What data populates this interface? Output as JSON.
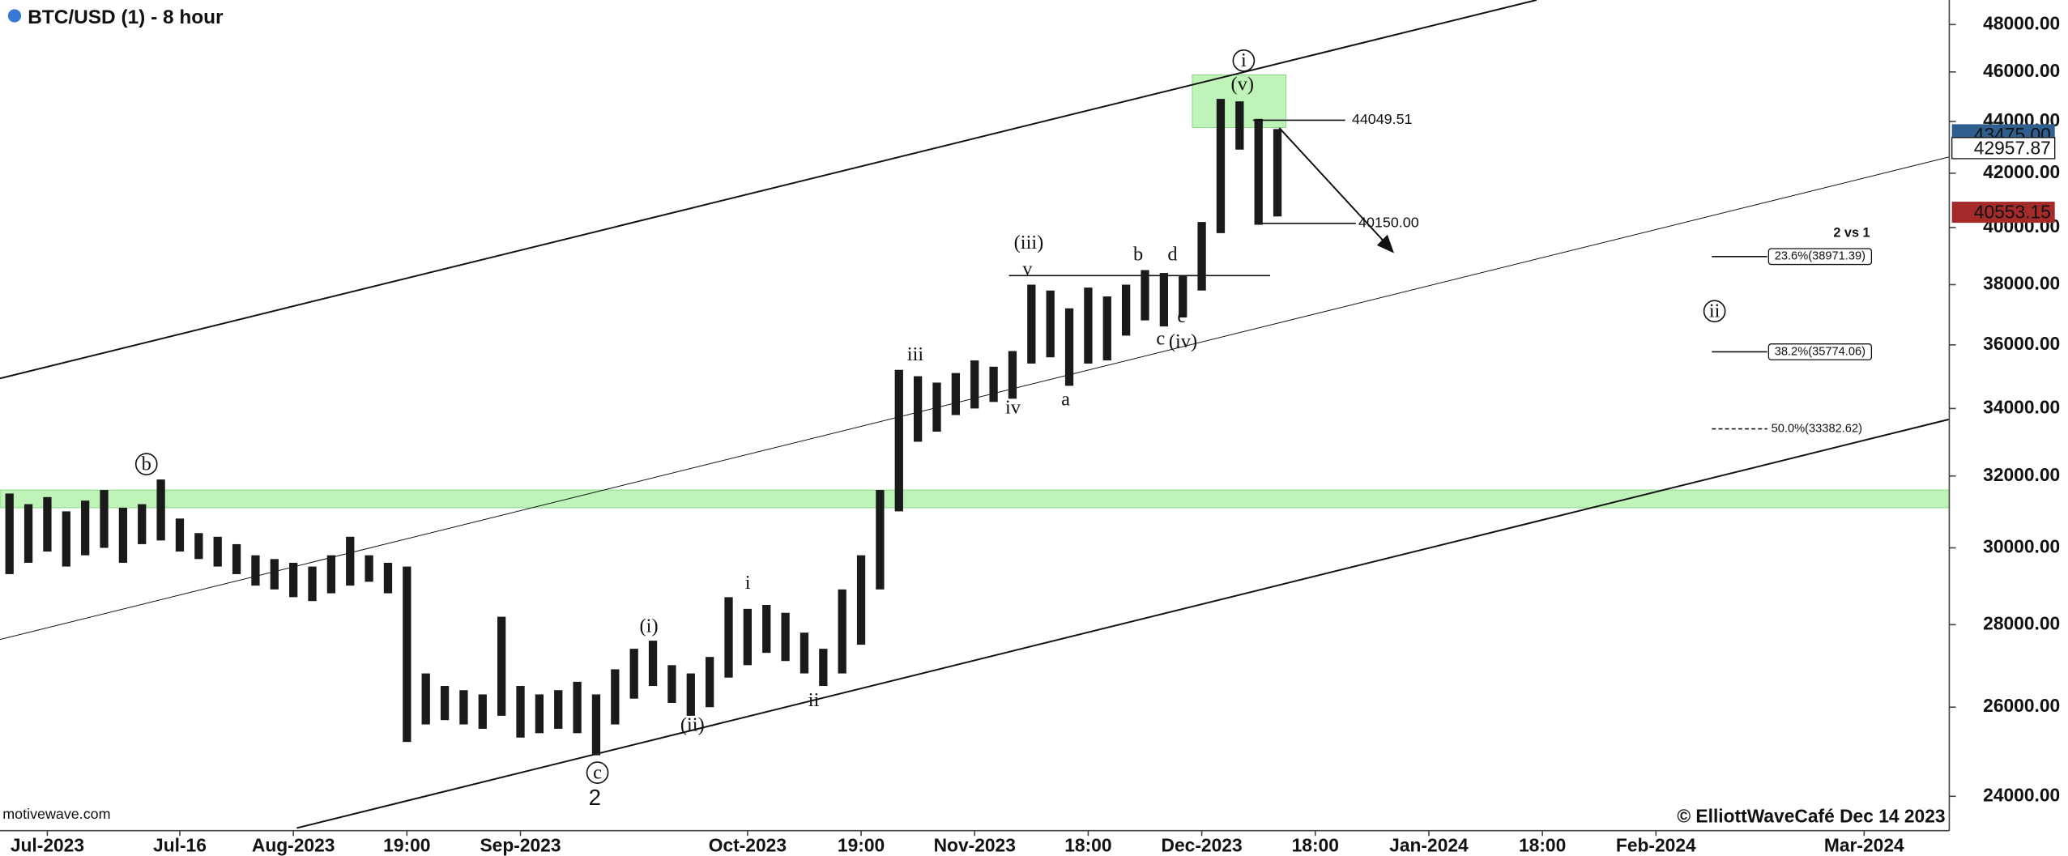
{
  "chart_data": {
    "type": "ohlc",
    "title": "BTC/USD (1) - 8 hour",
    "log": true,
    "grid": false,
    "color": "#1a1a1a",
    "ylim": [
      23270,
      49070
    ],
    "yticks": [
      {
        "value": 24000,
        "label": "24000.00"
      },
      {
        "value": 26000,
        "label": "26000.00"
      },
      {
        "value": 28000,
        "label": "28000.00"
      },
      {
        "value": 30000,
        "label": "30000.00"
      },
      {
        "value": 32000,
        "label": "32000.00"
      },
      {
        "value": 34000,
        "label": "34000.00"
      },
      {
        "value": 36000,
        "label": "36000.00"
      },
      {
        "value": 38000,
        "label": "38000.00"
      },
      {
        "value": 40000,
        "label": "40000.00"
      },
      {
        "value": 42000,
        "label": "42000.00"
      },
      {
        "value": 44000,
        "label": "44000.00"
      },
      {
        "value": 46000,
        "label": "46000.00"
      },
      {
        "value": 48000,
        "label": "48000.00"
      }
    ],
    "categories": [
      null,
      null,
      "Jul-2023",
      null,
      null,
      null,
      null,
      null,
      null,
      "Jul-16",
      null,
      null,
      null,
      null,
      null,
      "Aug-2023",
      null,
      null,
      null,
      null,
      null,
      "19:00",
      null,
      null,
      null,
      null,
      null,
      "Sep-2023",
      null,
      null,
      null,
      null,
      null,
      null,
      null,
      null,
      null,
      null,
      null,
      "Oct-2023",
      null,
      null,
      null,
      null,
      null,
      "19:00",
      null,
      null,
      null,
      null,
      null,
      "Nov-2023",
      null,
      null,
      null,
      null,
      null,
      "18:00",
      null,
      null,
      null,
      null,
      null,
      "Dec-2023",
      null,
      null,
      null,
      null,
      null,
      "18:00",
      null,
      null,
      null,
      null,
      null,
      "Jan-2024",
      null,
      null,
      null,
      null,
      null,
      "18:00",
      null,
      null,
      null,
      null,
      null,
      "Feb-2024",
      null,
      null,
      null,
      null,
      null,
      null,
      null,
      null,
      null,
      null,
      "Mar-2024",
      null,
      null,
      null,
      null
    ],
    "series": [
      {
        "name": "High",
        "values": [
          31500,
          31200,
          31400,
          31000,
          31300,
          31600,
          31100,
          31200,
          31900,
          30800,
          30400,
          30300,
          30100,
          29800,
          29700,
          29600,
          29500,
          29800,
          30300,
          29800,
          29600,
          29500,
          26800,
          26500,
          26400,
          26300,
          28200,
          26500,
          26300,
          26400,
          26600,
          26300,
          26900,
          27400,
          27600,
          27000,
          26800,
          27200,
          28700,
          28400,
          28500,
          28300,
          27800,
          27400,
          28900,
          29800,
          31600,
          35200,
          35000,
          34800,
          35100,
          35500,
          35300,
          35800,
          38000,
          37800,
          37200,
          37900,
          37600,
          38000,
          38500,
          38400,
          38300,
          40200,
          44900,
          44800,
          44100,
          43700,
          null,
          null,
          null,
          null,
          null,
          null,
          null,
          null,
          null,
          null,
          null,
          null,
          null,
          null,
          null,
          null,
          null,
          null,
          null,
          null,
          null,
          null,
          null,
          null,
          null,
          null,
          null,
          null,
          null,
          null,
          null,
          null,
          null,
          null,
          null
        ]
      },
      {
        "name": "Low",
        "values": [
          29300,
          29600,
          29900,
          29500,
          29800,
          30000,
          29600,
          30100,
          30200,
          29900,
          29700,
          29500,
          29300,
          29000,
          28900,
          28700,
          28600,
          28800,
          29000,
          29100,
          28800,
          25200,
          25600,
          25700,
          25600,
          25500,
          25800,
          25300,
          25400,
          25500,
          25400,
          24900,
          25600,
          26200,
          26500,
          26100,
          25800,
          26000,
          26700,
          27000,
          27300,
          27100,
          26800,
          26500,
          26800,
          27500,
          28900,
          31000,
          33000,
          33300,
          33800,
          34000,
          34200,
          34300,
          35400,
          35600,
          34700,
          35400,
          35500,
          36300,
          36800,
          36600,
          36900,
          37800,
          39800,
          42900,
          40100,
          40400,
          null,
          null,
          null,
          null,
          null,
          null,
          null,
          null,
          null,
          null,
          null,
          null,
          null,
          null,
          null,
          null,
          null,
          null,
          null,
          null,
          null,
          null,
          null,
          null,
          null,
          null,
          null,
          null,
          null,
          null,
          null,
          null,
          null,
          null,
          null
        ]
      }
    ],
    "zones": [
      {
        "from": 31100,
        "to": 31600
      },
      {
        "from": 43760,
        "to": 45880
      }
    ],
    "levels": [
      {
        "value": 44049.51,
        "label": "44049.51"
      },
      {
        "value": 40150,
        "label": "40150.00"
      }
    ],
    "fib_levels": [
      {
        "value": 38971.39,
        "label": "23.6%(38971.39)"
      },
      {
        "value": 35774.06,
        "label": "38.2%(35774.06)"
      },
      {
        "value": 33382.62,
        "label": "50.0%(33382.62)"
      }
    ],
    "price_tags": [
      {
        "value": 43475,
        "label": "43475.00",
        "color": "#2f5f8f"
      },
      {
        "value": 42957.87,
        "label": "42957.87",
        "color": "#ffffff"
      },
      {
        "value": 40553.15,
        "label": "40553.15",
        "color": "#a52a2a"
      }
    ],
    "wave_labels": [
      "i",
      "(v)",
      "(iii)",
      "v",
      "b",
      "d",
      "e",
      "c",
      "(iv)",
      "iii",
      "iv",
      "a",
      "b",
      "(i)",
      "i",
      "(ii)",
      "ii",
      "c",
      "2",
      "ii"
    ],
    "note": "2 vs 1",
    "source": "motivewave.com",
    "copyright": "© ElliottWaveCafé Dec 14 2023"
  }
}
